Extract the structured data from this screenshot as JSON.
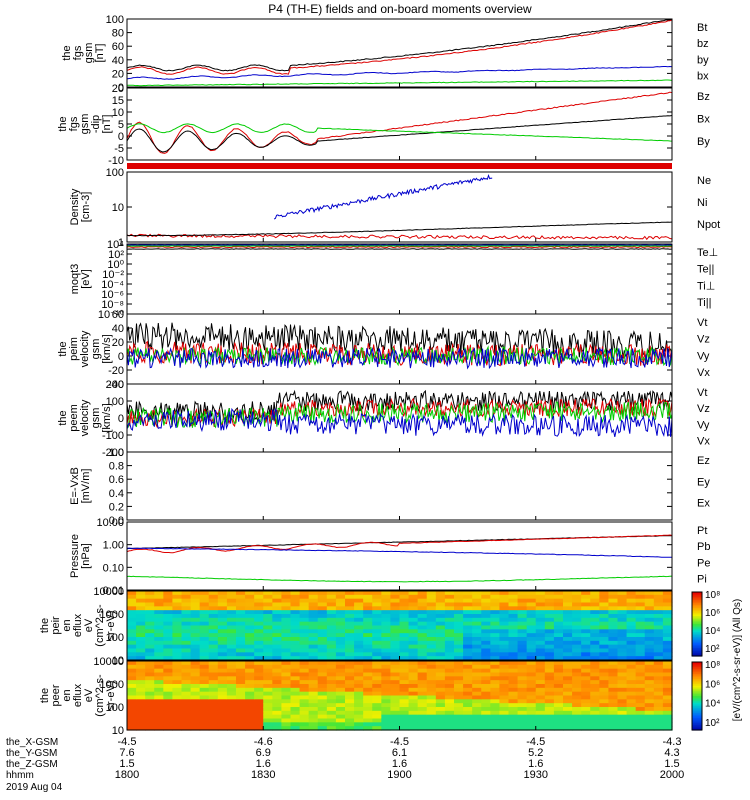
{
  "title": "P4 (TH-E) fields and on-board moments overview",
  "colors": {
    "black": "#000000",
    "red": "#dd0000",
    "green": "#00cc00",
    "blue": "#0000cc"
  },
  "chart_data": {
    "type": "line",
    "time_ticks": [
      "1800",
      "1830",
      "1900",
      "1930",
      "2000"
    ],
    "ephemeris": {
      "rows": [
        {
          "label": "the_X-GSM",
          "values": [
            "-4.5",
            "-4.6",
            "-4.5",
            "-4.5",
            "-4.3"
          ]
        },
        {
          "label": "the_Y-GSM",
          "values": [
            "7.6",
            "6.9",
            "6.1",
            "5.2",
            "4.3"
          ]
        },
        {
          "label": "the_Z-GSM",
          "values": [
            "1.5",
            "1.6",
            "1.6",
            "1.6",
            "1.5"
          ]
        },
        {
          "label": "hhmm",
          "values": [
            "1800",
            "1830",
            "1900",
            "1930",
            "2000"
          ]
        }
      ],
      "date": "2019 Aug 04"
    },
    "panels": [
      {
        "id": "fgs-mag",
        "ylabel": [
          "the",
          "fgs",
          "gsm",
          "[nT]"
        ],
        "yticks": [
          "100",
          "80",
          "60",
          "40",
          "20",
          "0"
        ],
        "ylim": [
          0,
          100
        ],
        "legend": [
          {
            "name": "Bt",
            "color": "black"
          },
          {
            "name": "bz",
            "color": "red"
          },
          {
            "name": "by",
            "color": "green"
          },
          {
            "name": "bx",
            "color": "blue"
          }
        ]
      },
      {
        "id": "fgs-dip",
        "ylabel": [
          "the",
          "fgs",
          "gsm",
          "-dip",
          "[nT]"
        ],
        "yticks": [
          "20",
          "15",
          "10",
          "5",
          "0",
          "-5",
          "-10"
        ],
        "ylim": [
          -12,
          22
        ],
        "legend": [
          {
            "name": "Bz",
            "color": "red"
          },
          {
            "name": "Bx",
            "color": "black"
          },
          {
            "name": "By",
            "color": "green"
          }
        ]
      },
      {
        "id": "density",
        "ylabel": [
          "Density",
          "[cm-3]"
        ],
        "yticks": [
          "100",
          "10",
          "1"
        ],
        "ylim": [
          0.5,
          300
        ],
        "scale": "log",
        "legend": [
          {
            "name": "Ne",
            "color": "red"
          },
          {
            "name": "Ni",
            "color": "black"
          },
          {
            "name": "Npot",
            "color": "blue"
          }
        ]
      },
      {
        "id": "temp",
        "ylabel": [
          "moqt3",
          "[eV]"
        ],
        "yticks": [
          "10⁴",
          "10²",
          "10⁰",
          "10⁻²",
          "10⁻⁴",
          "10⁻⁶",
          "10⁻⁸",
          "10⁻¹⁰"
        ],
        "scale": "log",
        "legend": [
          {
            "name": "Te⊥",
            "color": "red"
          },
          {
            "name": "Te||",
            "color": "black"
          },
          {
            "name": "Ti⊥",
            "color": "blue"
          },
          {
            "name": "Ti||",
            "color": "green"
          }
        ]
      },
      {
        "id": "peim-vel",
        "ylabel": [
          "the",
          "peim",
          "velocity",
          "gsm",
          "[km/s]"
        ],
        "yticks": [
          "60",
          "40",
          "20",
          "0",
          "-20",
          "-40"
        ],
        "ylim": [
          -40,
          60
        ],
        "legend": [
          {
            "name": "Vt",
            "color": "black"
          },
          {
            "name": "Vz",
            "color": "red"
          },
          {
            "name": "Vy",
            "color": "green"
          },
          {
            "name": "Vx",
            "color": "blue"
          }
        ]
      },
      {
        "id": "peem-vel",
        "ylabel": [
          "the",
          "peem",
          "velocity",
          "gsm",
          "[km/s]"
        ],
        "yticks": [
          "200",
          "100",
          "0",
          "-100",
          "-200"
        ],
        "ylim": [
          -200,
          200
        ],
        "legend": [
          {
            "name": "Vt",
            "color": "black"
          },
          {
            "name": "Vz",
            "color": "red"
          },
          {
            "name": "Vy",
            "color": "green"
          },
          {
            "name": "Vx",
            "color": "blue"
          }
        ]
      },
      {
        "id": "efield",
        "ylabel": [
          "E=-VxB",
          "[mV/m]"
        ],
        "yticks": [
          "1.0",
          "0.8",
          "0.6",
          "0.4",
          "0.2",
          "0.0"
        ],
        "ylim": [
          0,
          1
        ],
        "legend": [
          {
            "name": "Ez",
            "color": "red"
          },
          {
            "name": "Ey",
            "color": "green"
          },
          {
            "name": "Ex",
            "color": "blue"
          }
        ]
      },
      {
        "id": "pressure",
        "ylabel": [
          "Pressure",
          "[nPa]"
        ],
        "yticks": [
          "10.00",
          "1.00",
          "0.10",
          "0.01"
        ],
        "scale": "log",
        "legend": [
          {
            "name": "Pt",
            "color": "black"
          },
          {
            "name": "Pb",
            "color": "red"
          },
          {
            "name": "Pe",
            "color": "green"
          },
          {
            "name": "Pi",
            "color": "blue"
          }
        ]
      },
      {
        "id": "peir-spec",
        "ylabel": [
          "the",
          "peir",
          "en",
          "eflux",
          "eV",
          "(cm^2-s-",
          "sr-eV)"
        ],
        "yticks": [
          "10000",
          "1000",
          "100",
          "10"
        ],
        "type": "heatmap"
      },
      {
        "id": "peer-spec",
        "ylabel": [
          "the",
          "peer",
          "en",
          "eflux",
          "eV",
          "(cm^2-s-",
          "sr-eV)"
        ],
        "yticks": [
          "10000",
          "1000",
          "100",
          "10"
        ],
        "type": "heatmap"
      }
    ],
    "colorbar": {
      "label": "[eV/(cm^2-s-sr-eV)] (All Qs)",
      "ticks_top": [
        "10⁸",
        "10⁶",
        "10⁴",
        "10²"
      ],
      "ticks_bottom": [
        "10⁸",
        "10⁶",
        "10⁴",
        "10²"
      ]
    }
  }
}
